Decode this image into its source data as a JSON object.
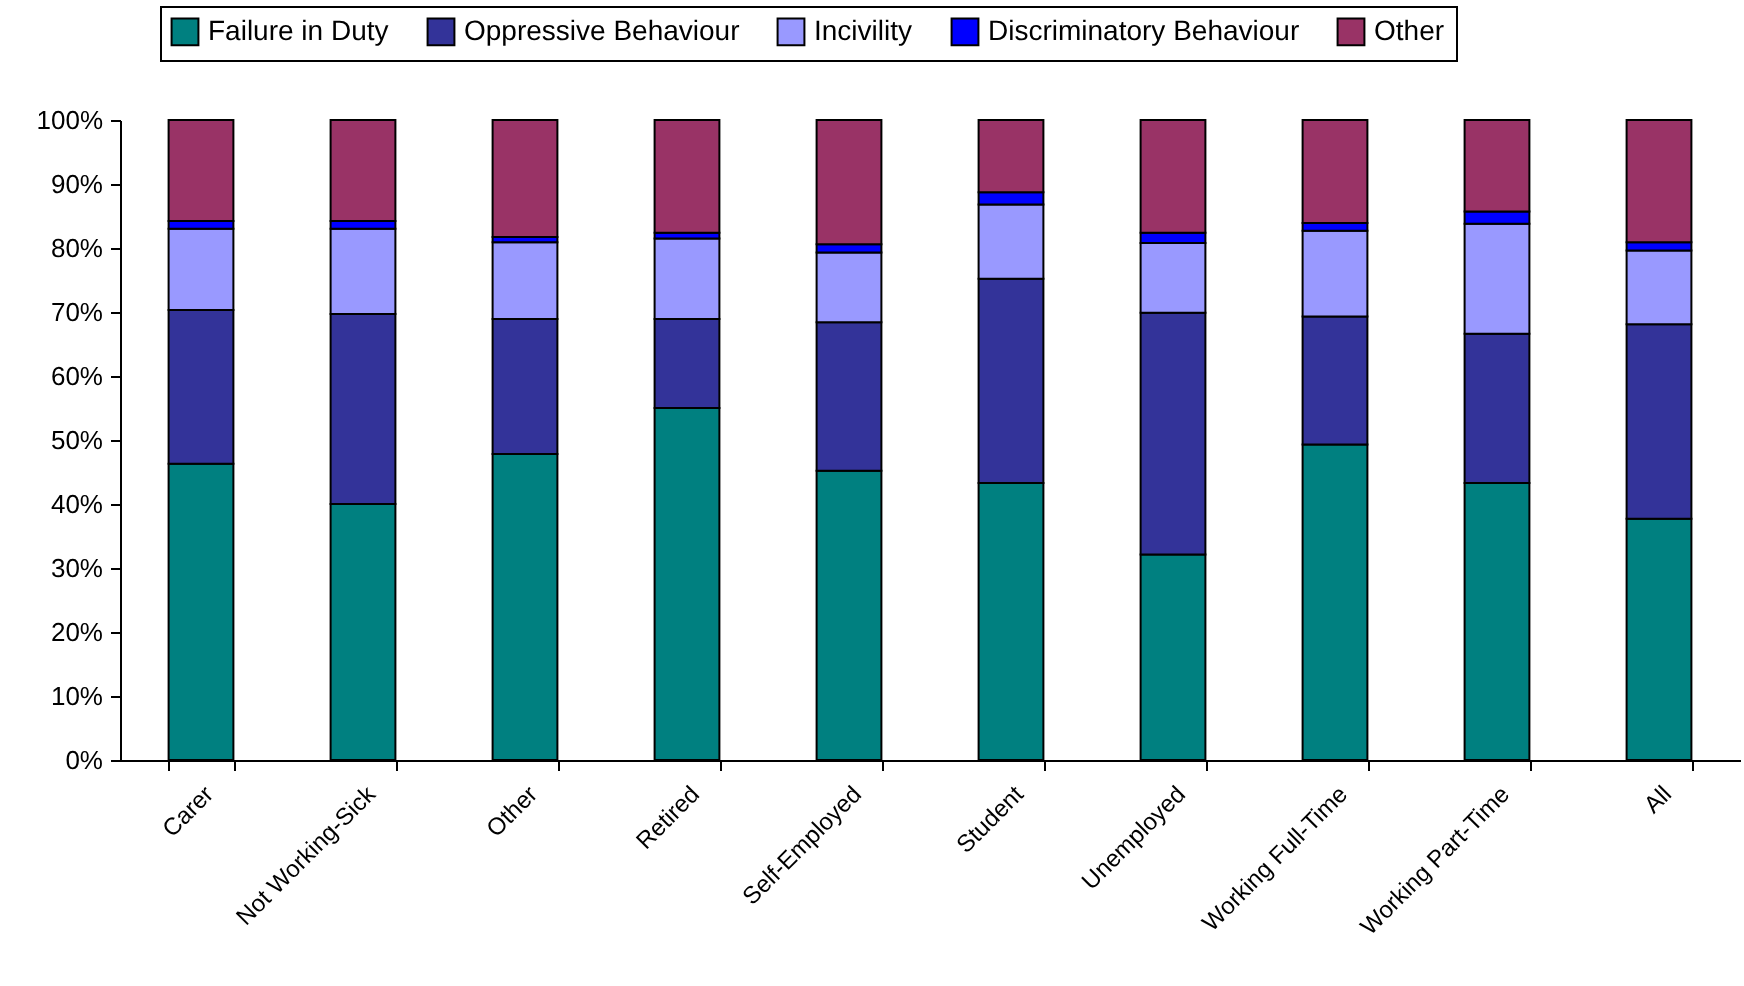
{
  "chart_data": {
    "type": "bar",
    "stacked": true,
    "legend": "top",
    "categories": [
      "Carer",
      "Not Working-Sick",
      "Other",
      "Retired",
      "Self-Employed",
      "Student",
      "Unemployed",
      "Working Full-Time",
      "Working Part-Time",
      "All"
    ],
    "series": [
      {
        "name": "Failure in Duty",
        "color": "#008080",
        "values": [
          46.3,
          40.0,
          47.8,
          55.0,
          45.2,
          43.3,
          32.1,
          49.3,
          43.3,
          37.7
        ]
      },
      {
        "name": "Oppressive Behaviour",
        "color": "#333399",
        "values": [
          24.0,
          29.7,
          21.1,
          13.9,
          23.2,
          31.9,
          37.8,
          20.0,
          23.3,
          30.4
        ]
      },
      {
        "name": "Incivility",
        "color": "#9999ff",
        "values": [
          12.7,
          13.3,
          12.0,
          12.6,
          10.9,
          11.6,
          10.9,
          13.4,
          17.2,
          11.5
        ]
      },
      {
        "name": "Discriminatory Behaviour",
        "color": "#0000ff",
        "values": [
          1.2,
          1.2,
          0.8,
          0.9,
          1.3,
          1.9,
          1.6,
          1.2,
          1.9,
          1.3
        ]
      },
      {
        "name": "Other",
        "color": "#993366",
        "values": [
          15.8,
          15.8,
          18.3,
          17.6,
          19.4,
          11.3,
          17.6,
          16.1,
          14.3,
          19.1
        ]
      }
    ],
    "ylim": [
      0,
      100
    ],
    "yticks": [
      {
        "value": 0,
        "label": "0%"
      },
      {
        "value": 10,
        "label": "10%"
      },
      {
        "value": 20,
        "label": "20%"
      },
      {
        "value": 30,
        "label": "30%"
      },
      {
        "value": 40,
        "label": "40%"
      },
      {
        "value": 50,
        "label": "50%"
      },
      {
        "value": 60,
        "label": "60%"
      },
      {
        "value": 70,
        "label": "70%"
      },
      {
        "value": 80,
        "label": "80%"
      },
      {
        "value": 90,
        "label": "90%"
      },
      {
        "value": 100,
        "label": "100%"
      }
    ],
    "grid": false
  }
}
